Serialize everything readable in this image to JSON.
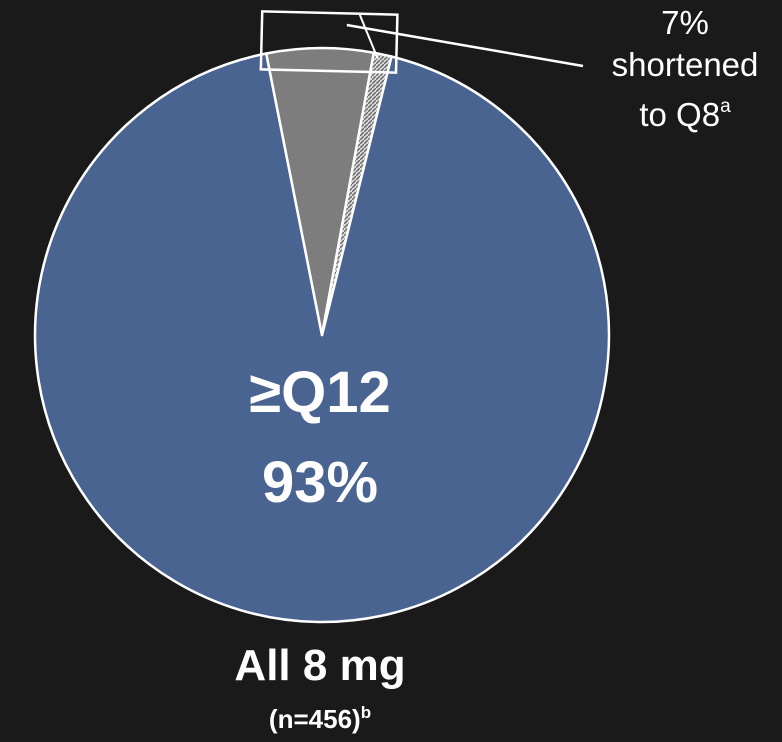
{
  "chart_data": {
    "type": "pie",
    "slices": [
      {
        "label": "≥Q12",
        "value": 93,
        "percent_label": "93%",
        "color": "#4a6491"
      },
      {
        "label": "shortened to Q8",
        "value": 6,
        "color": "#7d7d7d"
      },
      {
        "label": "",
        "value": 1,
        "color": "#aaaaaa",
        "pattern": "hatched"
      }
    ],
    "center_label": {
      "category": "≥Q12",
      "percent": "93%"
    },
    "callout": {
      "percent": "7%",
      "line1": "shortened",
      "line2": "to Q8",
      "footnote": "a"
    },
    "caption": {
      "title": "All 8 mg",
      "n_label": "(n=456)",
      "footnote": "b"
    }
  }
}
